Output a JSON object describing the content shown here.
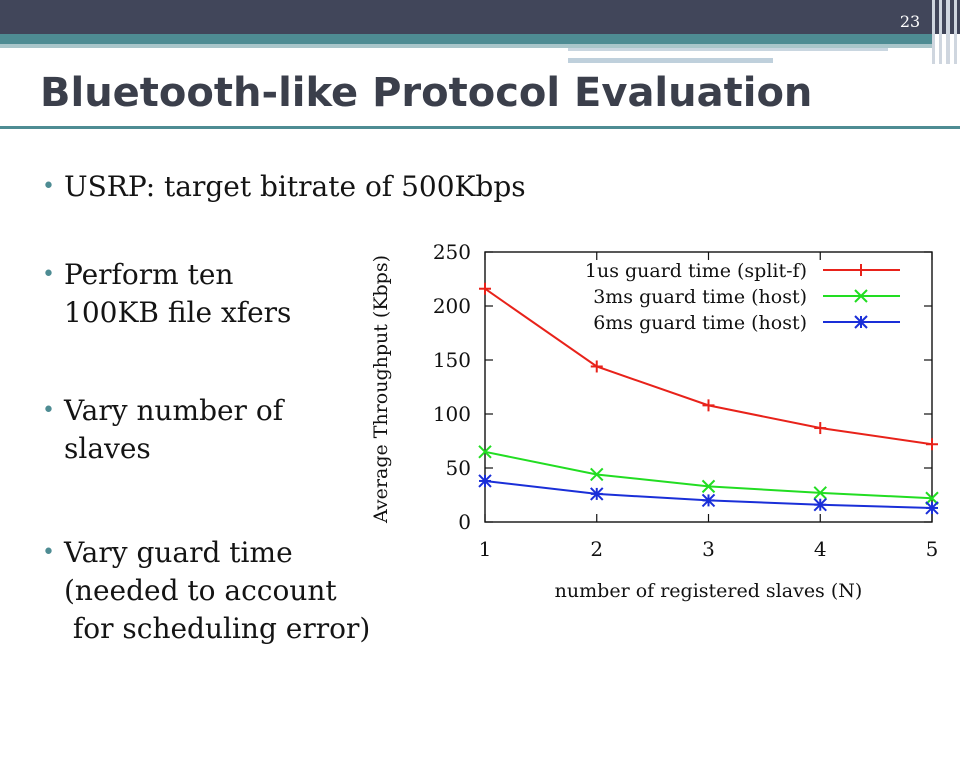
{
  "slide": {
    "page_number": "23",
    "title": "Bluetooth-like Protocol Evaluation",
    "bullets": [
      {
        "lines": [
          "USRP: target bitrate of 500Kbps"
        ]
      },
      {
        "lines": [
          "Perform ten",
          "100KB file xfers"
        ]
      },
      {
        "lines": [
          "Vary number of",
          "slaves"
        ]
      },
      {
        "lines": [
          "Vary guard time",
          "(needed to account",
          " for scheduling error)"
        ]
      }
    ]
  },
  "chart_data": {
    "type": "line",
    "title": "",
    "xlabel": "number of registered slaves (N)",
    "ylabel": "Average Throughput (Kbps)",
    "x": [
      1,
      2,
      3,
      4,
      5
    ],
    "xlim": [
      1,
      5
    ],
    "ylim": [
      0,
      250
    ],
    "xticks": [
      "1",
      "2",
      "3",
      "4",
      "5"
    ],
    "yticks": [
      "0",
      "50",
      "100",
      "150",
      "200",
      "250"
    ],
    "grid": false,
    "legend_position": "top-right",
    "series": [
      {
        "name": "1us guard time (split-f)",
        "color": "#e8221a",
        "marker": "plus",
        "values": [
          216,
          144,
          108,
          87,
          72
        ]
      },
      {
        "name": "3ms guard time (host)",
        "color": "#22dd22",
        "marker": "cross",
        "values": [
          65,
          44,
          33,
          27,
          22
        ]
      },
      {
        "name": "6ms guard time (host)",
        "color": "#1a2fd8",
        "marker": "star",
        "values": [
          38,
          26,
          20,
          16,
          13
        ]
      }
    ]
  }
}
